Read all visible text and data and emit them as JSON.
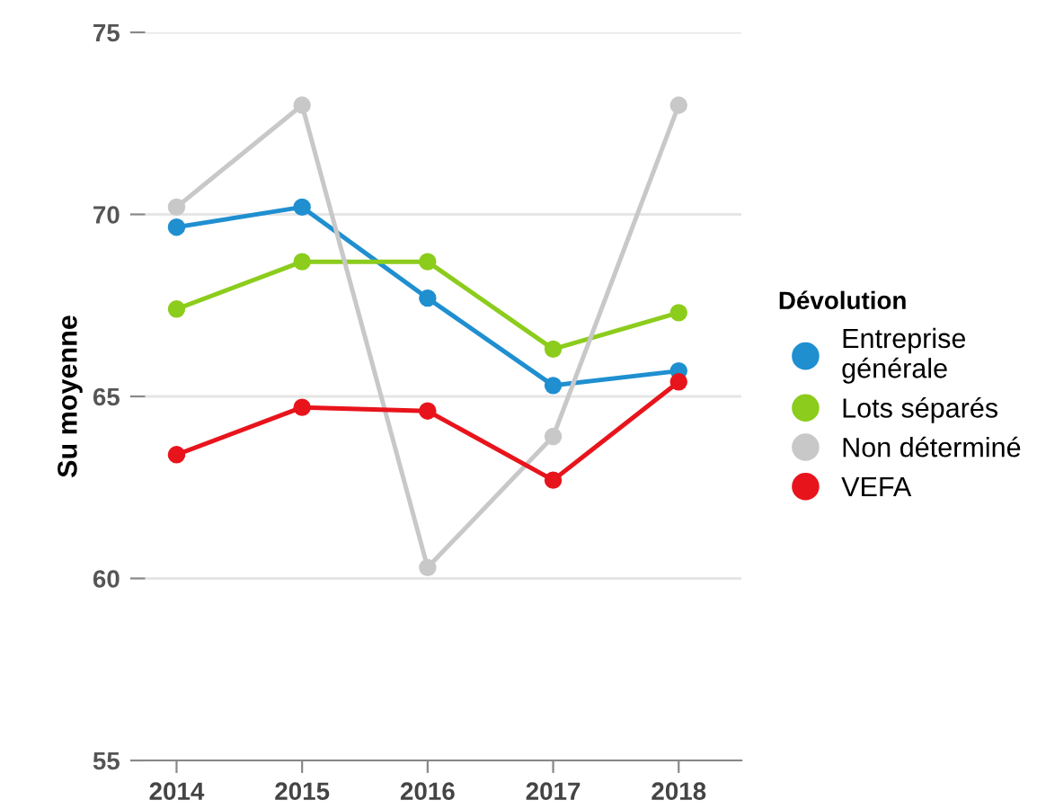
{
  "chart_data": {
    "type": "line",
    "ylabel": "Su moyenne",
    "legend_title": "Dévolution",
    "categories": [
      "2014",
      "2015",
      "2016",
      "2017",
      "2018"
    ],
    "series": [
      {
        "name": "Entreprise\ngénérale",
        "color": "#1f8fd0",
        "values": [
          69.65,
          70.2,
          67.7,
          65.3,
          65.7
        ]
      },
      {
        "name": "Lots séparés",
        "color": "#8ccc1c",
        "values": [
          67.4,
          68.7,
          68.7,
          66.3,
          67.3
        ]
      },
      {
        "name": "Non déterminé",
        "color": "#c8c8c8",
        "values": [
          70.2,
          73.0,
          60.3,
          63.9,
          73.0
        ]
      },
      {
        "name": "VEFA",
        "color": "#e8141c",
        "values": [
          63.4,
          64.7,
          64.6,
          62.7,
          65.4
        ]
      }
    ],
    "ylim": [
      55,
      75
    ],
    "yticks": [
      55,
      60,
      65,
      70,
      75
    ],
    "grid": "y",
    "legend": "right",
    "marker": "circle",
    "line_style": "solid"
  }
}
